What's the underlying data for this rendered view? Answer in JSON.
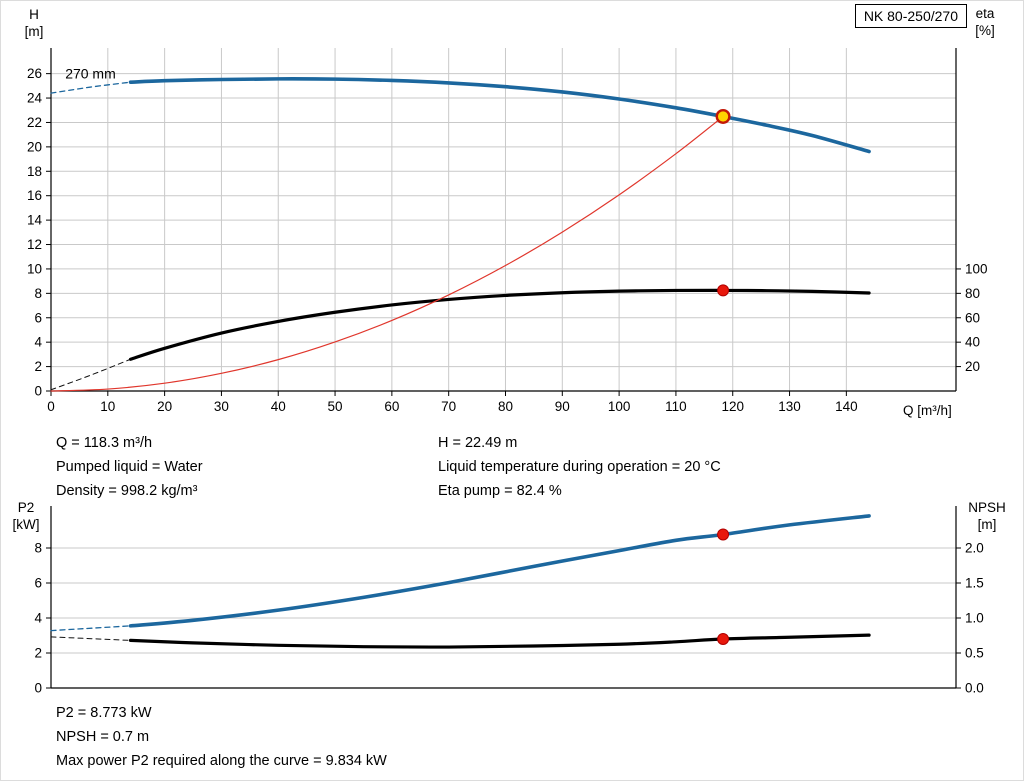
{
  "colors": {
    "curve_blue": "#1c679e",
    "curve_black": "#000000",
    "system_red": "#e0362c",
    "duty_yellow": "#ffd400",
    "duty_red": "#e8180c",
    "grid": "#c9c9c9"
  },
  "chart_data": [
    {
      "type": "line",
      "title": "NK 80-250/270",
      "x_axis": {
        "label": "Q [m³/h]",
        "min": 0,
        "max": 159.3,
        "ticks": [
          0,
          10,
          20,
          30,
          40,
          50,
          60,
          70,
          80,
          90,
          100,
          110,
          120,
          130,
          140
        ]
      },
      "y_left": {
        "label": [
          "H",
          "[m]"
        ],
        "min": 0,
        "max": 28.1,
        "ticks": [
          0,
          2,
          4,
          6,
          8,
          10,
          12,
          14,
          16,
          18,
          20,
          22,
          24,
          26
        ]
      },
      "y_right": {
        "label": [
          "eta",
          "[%]"
        ],
        "ticks": [
          {
            "label": "20",
            "pos": 2
          },
          {
            "label": "40",
            "pos": 4
          },
          {
            "label": "60",
            "pos": 6
          },
          {
            "label": "80",
            "pos": 8
          },
          {
            "label": "100",
            "pos": 10
          }
        ]
      },
      "annotations": [
        {
          "text": "270 mm",
          "x": 2.5,
          "y": 25.6
        }
      ],
      "series": [
        {
          "name": "head-curve-extrapolated",
          "color": "#1c679e",
          "width": 1.3,
          "dash": "5 4",
          "points": [
            [
              0,
              24.4
            ],
            [
              7,
              24.9
            ],
            [
              14,
              25.3
            ]
          ]
        },
        {
          "name": "head-curve",
          "color": "#1c679e",
          "width": 3.6,
          "points": [
            [
              14,
              25.3
            ],
            [
              20,
              25.42
            ],
            [
              30,
              25.52
            ],
            [
              40,
              25.57
            ],
            [
              50,
              25.55
            ],
            [
              60,
              25.44
            ],
            [
              70,
              25.24
            ],
            [
              80,
              24.93
            ],
            [
              90,
              24.5
            ],
            [
              100,
              23.92
            ],
            [
              110,
              23.2
            ],
            [
              118.3,
              22.49
            ],
            [
              126,
              21.77
            ],
            [
              134,
              20.93
            ],
            [
              144,
              19.62
            ]
          ]
        },
        {
          "name": "eta-curve-extrapolated",
          "color": "#111111",
          "width": 1,
          "dash": "5 4",
          "scale": 0.1,
          "points": [
            [
              0,
              1
            ],
            [
              7,
              13
            ],
            [
              14,
              26
            ]
          ]
        },
        {
          "name": "eta-curve",
          "color": "#000000",
          "width": 3.2,
          "scale": 0.1,
          "points": [
            [
              14,
              26
            ],
            [
              20,
              35
            ],
            [
              30,
              47.5
            ],
            [
              40,
              57
            ],
            [
              50,
              64.5
            ],
            [
              60,
              70.5
            ],
            [
              70,
              75
            ],
            [
              80,
              78.3
            ],
            [
              90,
              80.5
            ],
            [
              100,
              81.8
            ],
            [
              110,
              82.4
            ],
            [
              118.3,
              82.4
            ],
            [
              126,
              82.2
            ],
            [
              134,
              81.6
            ],
            [
              144,
              80.3
            ]
          ]
        },
        {
          "name": "system-curve",
          "color": "#e0362c",
          "width": 1.2,
          "points": [
            [
              0,
              0
            ],
            [
              10,
              0.16
            ],
            [
              20,
              0.64
            ],
            [
              30,
              1.45
            ],
            [
              40,
              2.57
            ],
            [
              50,
              4.02
            ],
            [
              60,
              5.78
            ],
            [
              70,
              7.87
            ],
            [
              80,
              10.28
            ],
            [
              90,
              13.02
            ],
            [
              100,
              16.07
            ],
            [
              110,
              19.44
            ],
            [
              118.3,
              22.49
            ]
          ]
        }
      ],
      "markers": [
        {
          "name": "duty-point-head",
          "x": 118.3,
          "y": 22.49,
          "r": 6.3,
          "fill": "#ffd400",
          "stroke": "#c21807",
          "stroke_width": 2.4
        },
        {
          "name": "duty-point-eta",
          "x": 118.3,
          "y": 82.4,
          "scale": 0.1,
          "r": 5.5,
          "fill": "#e8180c",
          "stroke": "#b00000",
          "stroke_width": 1
        }
      ]
    },
    {
      "type": "line",
      "x_axis": {
        "label": "",
        "min": 0,
        "max": 159.3,
        "ticks": []
      },
      "y_left": {
        "label": [
          "P2",
          "[kW]"
        ],
        "min": 0,
        "max": 10.4,
        "ticks": [
          0,
          2,
          4,
          6,
          8
        ]
      },
      "y_right": {
        "label": [
          "NPSH",
          "[m]"
        ],
        "ticks": [
          {
            "label": "0.0",
            "pos": 0
          },
          {
            "label": "0.5",
            "pos": 2
          },
          {
            "label": "1.0",
            "pos": 4
          },
          {
            "label": "1.5",
            "pos": 6
          },
          {
            "label": "2.0",
            "pos": 8
          }
        ]
      },
      "annotations": [],
      "series": [
        {
          "name": "p2-curve-extrapolated",
          "color": "#1c679e",
          "width": 1.3,
          "dash": "5 4",
          "points": [
            [
              0,
              3.28
            ],
            [
              14,
              3.55
            ]
          ]
        },
        {
          "name": "p2-curve",
          "color": "#1c679e",
          "width": 3.6,
          "points": [
            [
              14,
              3.55
            ],
            [
              25,
              3.87
            ],
            [
              40,
              4.45
            ],
            [
              55,
              5.18
            ],
            [
              70,
              6.02
            ],
            [
              85,
              6.95
            ],
            [
              100,
              7.85
            ],
            [
              110,
              8.44
            ],
            [
              118.3,
              8.773
            ],
            [
              130,
              9.32
            ],
            [
              144,
              9.834
            ]
          ]
        },
        {
          "name": "npsh-curve-extrapolated",
          "color": "#111111",
          "width": 1,
          "dash": "5 4",
          "scale": 4,
          "points": [
            [
              0,
              0.73
            ],
            [
              14,
              0.68
            ]
          ]
        },
        {
          "name": "npsh-curve",
          "color": "#000000",
          "width": 3.2,
          "scale": 4,
          "points": [
            [
              14,
              0.68
            ],
            [
              25,
              0.645
            ],
            [
              40,
              0.61
            ],
            [
              55,
              0.59
            ],
            [
              70,
              0.585
            ],
            [
              85,
              0.6
            ],
            [
              100,
              0.625
            ],
            [
              110,
              0.66
            ],
            [
              118.3,
              0.7
            ],
            [
              130,
              0.725
            ],
            [
              144,
              0.755
            ]
          ]
        }
      ],
      "markers": [
        {
          "name": "duty-point-p2",
          "x": 118.3,
          "y": 8.773,
          "r": 5.5,
          "fill": "#e8180c",
          "stroke": "#b00000",
          "stroke_width": 1
        },
        {
          "name": "duty-point-npsh",
          "x": 118.3,
          "y": 0.7,
          "scale": 4,
          "r": 5.5,
          "fill": "#e8180c",
          "stroke": "#b00000",
          "stroke_width": 1
        }
      ]
    }
  ],
  "readouts_top": {
    "left": [
      "Q = 118.3 m³/h",
      "Pumped liquid = Water",
      "Density = 998.2 kg/m³"
    ],
    "right": [
      "H = 22.49 m",
      "Liquid temperature during operation = 20 °C",
      "Eta pump = 82.4 %"
    ]
  },
  "readouts_bottom": [
    "P2 = 8.773 kW",
    "NPSH = 0.7 m",
    "Max power P2 required along the curve = 9.834 kW"
  ]
}
